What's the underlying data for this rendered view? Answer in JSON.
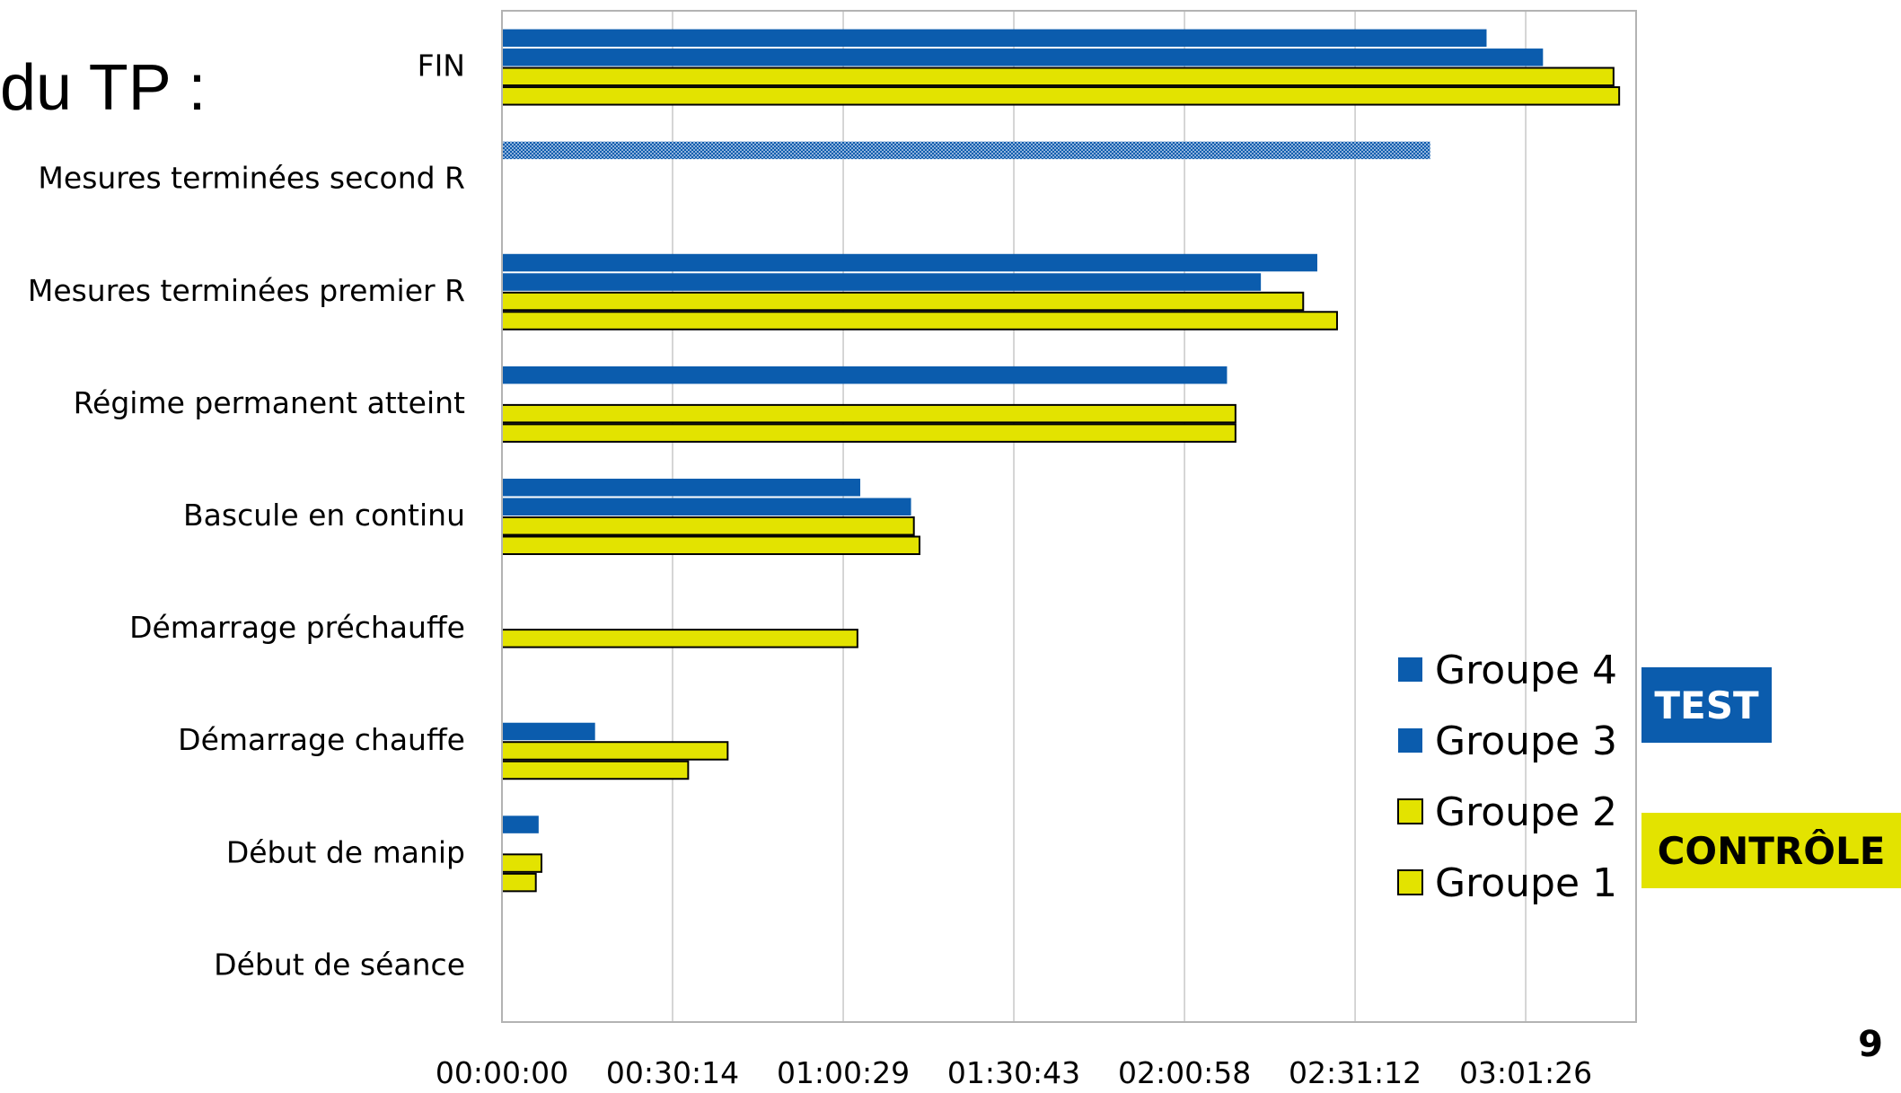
{
  "slide": {
    "title": "du TP :",
    "page_number": "9"
  },
  "colors": {
    "blue": "#0b5cad",
    "yellow": "#e3e300",
    "grid": "#c8c8c8",
    "frame": "#b3b3b3"
  },
  "badges": {
    "test": {
      "label": "TEST",
      "bg": "#0b5cad",
      "fg": "#ffffff"
    },
    "control": {
      "label": "CONTRÔLE",
      "bg": "#e3e300",
      "fg": "#000000"
    }
  },
  "chart_data": {
    "type": "bar",
    "orientation": "horizontal",
    "title": "",
    "xlabel": "",
    "ylabel": "",
    "grid": true,
    "legend_position": "bottom-right",
    "x_unit": "time (hh:mm:ss)",
    "xlim": [
      "00:00:00",
      "03:21:00"
    ],
    "x_ticks": [
      "00:00:00",
      "00:30:14",
      "01:00:29",
      "01:30:43",
      "02:00:58",
      "02:31:12",
      "03:01:26"
    ],
    "categories": [
      "Début de séance",
      "Début de manip",
      "Démarrage chauffe",
      "Démarrage préchauffe",
      "Bascule en continu",
      "Régime permanent atteint",
      "Mesures terminées premier R",
      "Mesures terminées second R",
      "FIN"
    ],
    "series": [
      {
        "name": "Groupe 1",
        "group": "CONTRÔLE",
        "color": "#e3e300",
        "outlined": true,
        "values": [
          null,
          "00:06:00",
          "00:33:00",
          null,
          "01:14:00",
          "02:10:00",
          "02:28:00",
          null,
          "03:18:00"
        ]
      },
      {
        "name": "Groupe 2",
        "group": "CONTRÔLE",
        "color": "#e3e300",
        "outlined": true,
        "values": [
          null,
          "00:07:00",
          "00:40:00",
          "01:03:00",
          "01:13:00",
          "02:10:00",
          "02:22:00",
          null,
          "03:17:00"
        ]
      },
      {
        "name": "Groupe 3",
        "group": "TEST",
        "color": "#0b5cad",
        "outlined": false,
        "values": [
          null,
          null,
          "00:16:30",
          null,
          "01:12:30",
          null,
          "02:14:30",
          null,
          "03:04:30"
        ]
      },
      {
        "name": "Groupe 4",
        "group": "TEST",
        "color": "#0b5cad",
        "outlined": false,
        "patterned_in": "Mesures terminées second R",
        "values": [
          null,
          "00:06:30",
          null,
          null,
          "01:03:30",
          "02:08:30",
          "02:24:30",
          "02:44:30",
          "02:54:30"
        ]
      }
    ],
    "legend_order": [
      "Groupe 4",
      "Groupe 3",
      "Groupe 2",
      "Groupe 1"
    ]
  }
}
